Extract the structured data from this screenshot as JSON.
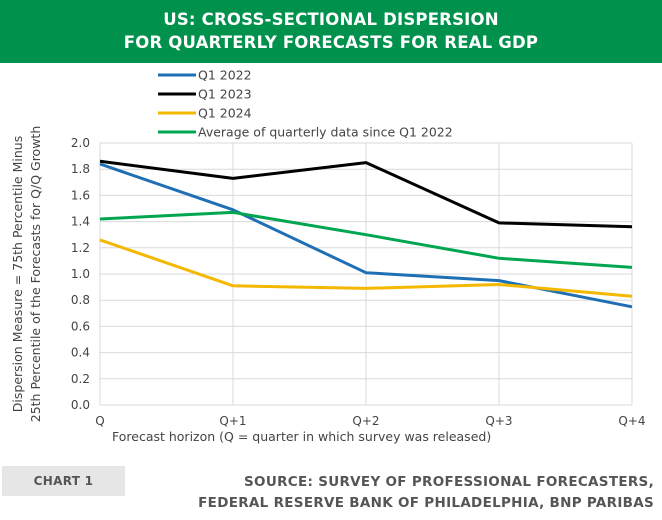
{
  "header": {
    "title_line1": "US: CROSS-SECTIONAL DISPERSION",
    "title_line2": "FOR QUARTERLY FORECASTS FOR REAL GDP"
  },
  "footer": {
    "chart_tag": "CHART 1",
    "source_line1": "SOURCE: SURVEY OF PROFESSIONAL FORECASTERS,",
    "source_line2": "FEDERAL RESERVE BANK OF PHILADELPHIA, BNP PARIBAS"
  },
  "chart_data": {
    "type": "line",
    "categories": [
      "Q",
      "Q+1",
      "Q+2",
      "Q+3",
      "Q+4"
    ],
    "series": [
      {
        "name": "Q1 2022",
        "color": "#1f6fb5",
        "values": [
          1.84,
          1.49,
          1.01,
          0.95,
          0.75
        ]
      },
      {
        "name": "Q1 2023",
        "color": "#000000",
        "values": [
          1.86,
          1.73,
          1.85,
          1.39,
          1.36
        ]
      },
      {
        "name": "Q1 2024",
        "color": "#f5b800",
        "values": [
          1.26,
          0.91,
          0.89,
          0.92,
          0.83
        ]
      },
      {
        "name": "Average of quarterly data since Q1 2022",
        "color": "#00a64f",
        "values": [
          1.42,
          1.47,
          1.3,
          1.12,
          1.05
        ]
      }
    ],
    "ylim": [
      0,
      2.0
    ],
    "yticks": [
      "0.0",
      "0.2",
      "0.4",
      "0.6",
      "0.8",
      "1.0",
      "1.2",
      "1.4",
      "1.6",
      "1.8",
      "2.0"
    ],
    "ylabel_line1": "Dispersion Measure = 75th Percentile Minus",
    "ylabel_line2": "25th Percentile of the Forecasts for Q/Q Growth",
    "xlabel": "Forecast horizon (Q = quarter in which survey was released)",
    "grid": true,
    "legend_position": "top"
  }
}
